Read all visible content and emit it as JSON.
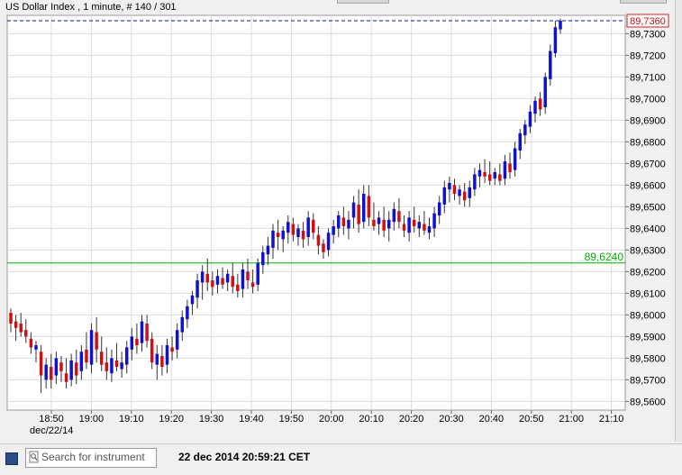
{
  "header": {
    "title": "US Dollar Index , 1 minute, # 140 / 301"
  },
  "footer": {
    "search_placeholder": "Search for instrument",
    "timestamp": "22 dec 2014 20:59:21 CET"
  },
  "colors": {
    "up": "#1010d0",
    "down": "#d01010",
    "grid": "#dcdcdc",
    "current_line": "#1010a0",
    "level_line": "#00b000"
  },
  "chart_data": {
    "type": "candlestick",
    "x_tick_labels": [
      "18:50",
      "19:00",
      "19:10",
      "19:20",
      "19:30",
      "19:40",
      "19:50",
      "20:00",
      "20:10",
      "20:20",
      "20:30",
      "20:40",
      "20:50",
      "21:00",
      "21:10"
    ],
    "date_label": "dec/22/14",
    "y_tick_labels": [
      "89,5600",
      "89,5700",
      "89,5800",
      "89,5900",
      "89,6000",
      "89,6100",
      "89,6200",
      "89,6300",
      "89,6400",
      "89,6500",
      "89,6600",
      "89,6700",
      "89,6800",
      "89,6900",
      "89,7000",
      "89,7100",
      "89,7200",
      "89,7300"
    ],
    "ylim": [
      89.556,
      89.7385
    ],
    "current_price": {
      "value": 89.736,
      "label": "89,7360"
    },
    "level_line": {
      "value": 89.624,
      "label": "89,6240"
    },
    "grid": true,
    "candles": [
      {
        "o": 89.601,
        "h": 89.603,
        "l": 89.592,
        "c": 89.596
      },
      {
        "o": 89.597,
        "h": 89.6,
        "l": 89.588,
        "c": 89.594
      },
      {
        "o": 89.596,
        "h": 89.601,
        "l": 89.59,
        "c": 89.592
      },
      {
        "o": 89.593,
        "h": 89.598,
        "l": 89.587,
        "c": 89.59
      },
      {
        "o": 89.589,
        "h": 89.592,
        "l": 89.582,
        "c": 89.585
      },
      {
        "o": 89.584,
        "h": 89.588,
        "l": 89.578,
        "c": 89.586
      },
      {
        "o": 89.583,
        "h": 89.586,
        "l": 89.564,
        "c": 89.572
      },
      {
        "o": 89.57,
        "h": 89.58,
        "l": 89.566,
        "c": 89.577
      },
      {
        "o": 89.576,
        "h": 89.582,
        "l": 89.566,
        "c": 89.57
      },
      {
        "o": 89.572,
        "h": 89.583,
        "l": 89.568,
        "c": 89.58
      },
      {
        "o": 89.578,
        "h": 89.581,
        "l": 89.569,
        "c": 89.574
      },
      {
        "o": 89.573,
        "h": 89.58,
        "l": 89.566,
        "c": 89.569
      },
      {
        "o": 89.57,
        "h": 89.582,
        "l": 89.567,
        "c": 89.579
      },
      {
        "o": 89.578,
        "h": 89.584,
        "l": 89.568,
        "c": 89.572
      },
      {
        "o": 89.574,
        "h": 89.586,
        "l": 89.57,
        "c": 89.583
      },
      {
        "o": 89.584,
        "h": 89.592,
        "l": 89.575,
        "c": 89.578
      },
      {
        "o": 89.577,
        "h": 89.596,
        "l": 89.573,
        "c": 89.593
      },
      {
        "o": 89.592,
        "h": 89.599,
        "l": 89.578,
        "c": 89.584
      },
      {
        "o": 89.583,
        "h": 89.59,
        "l": 89.574,
        "c": 89.577
      },
      {
        "o": 89.578,
        "h": 89.585,
        "l": 89.57,
        "c": 89.574
      },
      {
        "o": 89.573,
        "h": 89.584,
        "l": 89.569,
        "c": 89.58
      },
      {
        "o": 89.579,
        "h": 89.587,
        "l": 89.574,
        "c": 89.576
      },
      {
        "o": 89.575,
        "h": 89.583,
        "l": 89.571,
        "c": 89.578
      },
      {
        "o": 89.577,
        "h": 89.588,
        "l": 89.573,
        "c": 89.585
      },
      {
        "o": 89.584,
        "h": 89.594,
        "l": 89.579,
        "c": 89.59
      },
      {
        "o": 89.589,
        "h": 89.596,
        "l": 89.582,
        "c": 89.586
      },
      {
        "o": 89.587,
        "h": 89.6,
        "l": 89.583,
        "c": 89.597
      },
      {
        "o": 89.596,
        "h": 89.6,
        "l": 89.585,
        "c": 89.588
      },
      {
        "o": 89.589,
        "h": 89.592,
        "l": 89.575,
        "c": 89.578
      },
      {
        "o": 89.577,
        "h": 89.586,
        "l": 89.57,
        "c": 89.582
      },
      {
        "o": 89.581,
        "h": 89.586,
        "l": 89.572,
        "c": 89.576
      },
      {
        "o": 89.577,
        "h": 89.589,
        "l": 89.573,
        "c": 89.586
      },
      {
        "o": 89.585,
        "h": 89.59,
        "l": 89.579,
        "c": 89.583
      },
      {
        "o": 89.584,
        "h": 89.596,
        "l": 89.58,
        "c": 89.593
      },
      {
        "o": 89.592,
        "h": 89.602,
        "l": 89.588,
        "c": 89.599
      },
      {
        "o": 89.598,
        "h": 89.607,
        "l": 89.594,
        "c": 89.604
      },
      {
        "o": 89.605,
        "h": 89.611,
        "l": 89.6,
        "c": 89.609
      },
      {
        "o": 89.608,
        "h": 89.619,
        "l": 89.603,
        "c": 89.616
      },
      {
        "o": 89.615,
        "h": 89.623,
        "l": 89.607,
        "c": 89.62
      },
      {
        "o": 89.619,
        "h": 89.626,
        "l": 89.611,
        "c": 89.615
      },
      {
        "o": 89.616,
        "h": 89.62,
        "l": 89.609,
        "c": 89.613
      },
      {
        "o": 89.614,
        "h": 89.621,
        "l": 89.61,
        "c": 89.618
      },
      {
        "o": 89.617,
        "h": 89.622,
        "l": 89.612,
        "c": 89.614
      },
      {
        "o": 89.615,
        "h": 89.621,
        "l": 89.611,
        "c": 89.619
      },
      {
        "o": 89.618,
        "h": 89.624,
        "l": 89.61,
        "c": 89.613
      },
      {
        "o": 89.614,
        "h": 89.619,
        "l": 89.608,
        "c": 89.611
      },
      {
        "o": 89.612,
        "h": 89.624,
        "l": 89.608,
        "c": 89.621
      },
      {
        "o": 89.62,
        "h": 89.626,
        "l": 89.612,
        "c": 89.616
      },
      {
        "o": 89.615,
        "h": 89.621,
        "l": 89.61,
        "c": 89.613
      },
      {
        "o": 89.614,
        "h": 89.626,
        "l": 89.611,
        "c": 89.624
      },
      {
        "o": 89.623,
        "h": 89.632,
        "l": 89.619,
        "c": 89.629
      },
      {
        "o": 89.628,
        "h": 89.636,
        "l": 89.623,
        "c": 89.632
      },
      {
        "o": 89.631,
        "h": 89.642,
        "l": 89.626,
        "c": 89.639
      },
      {
        "o": 89.638,
        "h": 89.644,
        "l": 89.63,
        "c": 89.636
      },
      {
        "o": 89.635,
        "h": 89.641,
        "l": 89.629,
        "c": 89.639
      },
      {
        "o": 89.638,
        "h": 89.646,
        "l": 89.633,
        "c": 89.643
      },
      {
        "o": 89.642,
        "h": 89.645,
        "l": 89.634,
        "c": 89.637
      },
      {
        "o": 89.636,
        "h": 89.642,
        "l": 89.632,
        "c": 89.64
      },
      {
        "o": 89.639,
        "h": 89.643,
        "l": 89.631,
        "c": 89.635
      },
      {
        "o": 89.636,
        "h": 89.648,
        "l": 89.632,
        "c": 89.645
      },
      {
        "o": 89.644,
        "h": 89.647,
        "l": 89.635,
        "c": 89.638
      },
      {
        "o": 89.637,
        "h": 89.641,
        "l": 89.628,
        "c": 89.632
      },
      {
        "o": 89.633,
        "h": 89.635,
        "l": 89.626,
        "c": 89.629
      },
      {
        "o": 89.63,
        "h": 89.64,
        "l": 89.627,
        "c": 89.638
      },
      {
        "o": 89.637,
        "h": 89.644,
        "l": 89.633,
        "c": 89.641
      },
      {
        "o": 89.64,
        "h": 89.648,
        "l": 89.636,
        "c": 89.646
      },
      {
        "o": 89.645,
        "h": 89.65,
        "l": 89.637,
        "c": 89.641
      },
      {
        "o": 89.64,
        "h": 89.648,
        "l": 89.635,
        "c": 89.644
      },
      {
        "o": 89.645,
        "h": 89.655,
        "l": 89.64,
        "c": 89.652
      },
      {
        "o": 89.651,
        "h": 89.658,
        "l": 89.638,
        "c": 89.642
      },
      {
        "o": 89.643,
        "h": 89.66,
        "l": 89.64,
        "c": 89.656
      },
      {
        "o": 89.655,
        "h": 89.66,
        "l": 89.641,
        "c": 89.645
      },
      {
        "o": 89.644,
        "h": 89.652,
        "l": 89.639,
        "c": 89.641
      },
      {
        "o": 89.642,
        "h": 89.648,
        "l": 89.637,
        "c": 89.645
      },
      {
        "o": 89.644,
        "h": 89.65,
        "l": 89.636,
        "c": 89.639
      },
      {
        "o": 89.64,
        "h": 89.648,
        "l": 89.634,
        "c": 89.644
      },
      {
        "o": 89.643,
        "h": 89.652,
        "l": 89.639,
        "c": 89.649
      },
      {
        "o": 89.648,
        "h": 89.654,
        "l": 89.64,
        "c": 89.643
      },
      {
        "o": 89.642,
        "h": 89.646,
        "l": 89.636,
        "c": 89.639
      },
      {
        "o": 89.638,
        "h": 89.648,
        "l": 89.634,
        "c": 89.645
      },
      {
        "o": 89.644,
        "h": 89.65,
        "l": 89.638,
        "c": 89.641
      },
      {
        "o": 89.64,
        "h": 89.646,
        "l": 89.636,
        "c": 89.643
      },
      {
        "o": 89.642,
        "h": 89.648,
        "l": 89.637,
        "c": 89.639
      },
      {
        "o": 89.638,
        "h": 89.645,
        "l": 89.635,
        "c": 89.641
      },
      {
        "o": 89.64,
        "h": 89.65,
        "l": 89.636,
        "c": 89.647
      },
      {
        "o": 89.646,
        "h": 89.655,
        "l": 89.642,
        "c": 89.652
      },
      {
        "o": 89.651,
        "h": 89.662,
        "l": 89.647,
        "c": 89.659
      },
      {
        "o": 89.658,
        "h": 89.664,
        "l": 89.652,
        "c": 89.661
      },
      {
        "o": 89.66,
        "h": 89.663,
        "l": 89.653,
        "c": 89.656
      },
      {
        "o": 89.655,
        "h": 89.66,
        "l": 89.651,
        "c": 89.658
      },
      {
        "o": 89.657,
        "h": 89.661,
        "l": 89.65,
        "c": 89.653
      },
      {
        "o": 89.654,
        "h": 89.662,
        "l": 89.65,
        "c": 89.659
      },
      {
        "o": 89.658,
        "h": 89.668,
        "l": 89.655,
        "c": 89.665
      },
      {
        "o": 89.664,
        "h": 89.67,
        "l": 89.659,
        "c": 89.667
      },
      {
        "o": 89.666,
        "h": 89.672,
        "l": 89.661,
        "c": 89.664
      },
      {
        "o": 89.665,
        "h": 89.671,
        "l": 89.66,
        "c": 89.662
      },
      {
        "o": 89.663,
        "h": 89.668,
        "l": 89.66,
        "c": 89.666
      },
      {
        "o": 89.665,
        "h": 89.67,
        "l": 89.66,
        "c": 89.662
      },
      {
        "o": 89.663,
        "h": 89.674,
        "l": 89.66,
        "c": 89.671
      },
      {
        "o": 89.67,
        "h": 89.675,
        "l": 89.663,
        "c": 89.666
      },
      {
        "o": 89.667,
        "h": 89.68,
        "l": 89.664,
        "c": 89.677
      },
      {
        "o": 89.676,
        "h": 89.686,
        "l": 89.672,
        "c": 89.684
      },
      {
        "o": 89.683,
        "h": 89.69,
        "l": 89.679,
        "c": 89.688
      },
      {
        "o": 89.687,
        "h": 89.697,
        "l": 89.684,
        "c": 89.694
      },
      {
        "o": 89.693,
        "h": 89.701,
        "l": 89.689,
        "c": 89.699
      },
      {
        "o": 89.7,
        "h": 89.703,
        "l": 89.692,
        "c": 89.695
      },
      {
        "o": 89.696,
        "h": 89.712,
        "l": 89.693,
        "c": 89.71
      },
      {
        "o": 89.709,
        "h": 89.725,
        "l": 89.706,
        "c": 89.722
      },
      {
        "o": 89.721,
        "h": 89.736,
        "l": 89.719,
        "c": 89.733
      },
      {
        "o": 89.732,
        "h": 89.737,
        "l": 89.73,
        "c": 89.736
      }
    ]
  }
}
